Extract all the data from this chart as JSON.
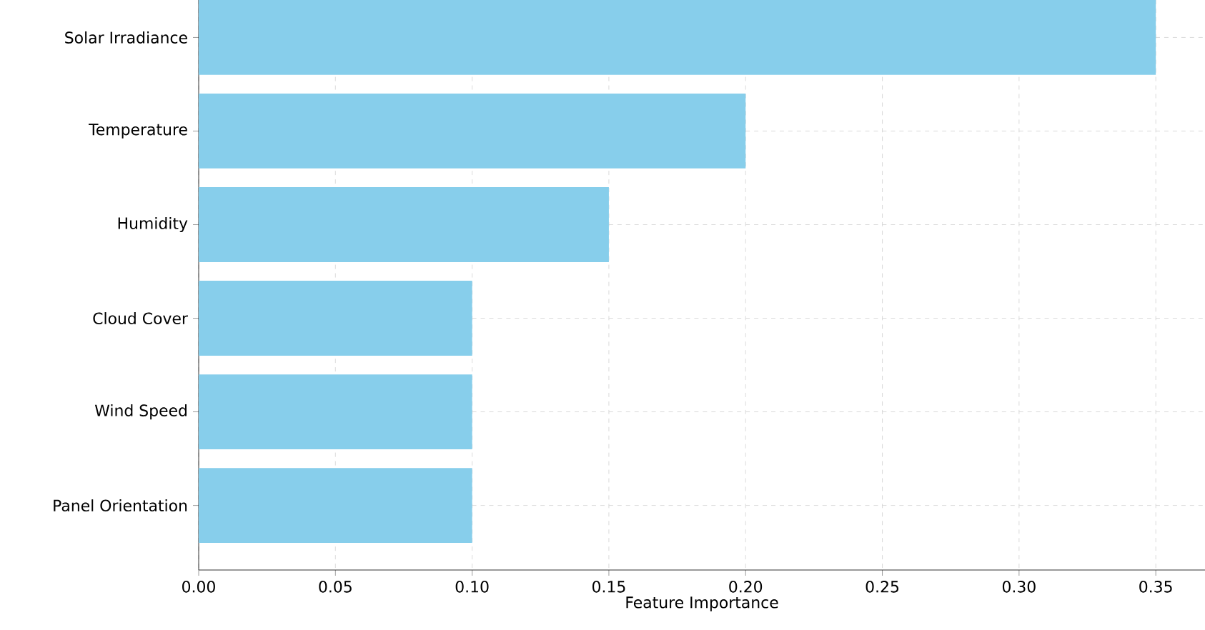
{
  "chart_data": {
    "type": "bar",
    "orientation": "horizontal",
    "xlabel": "Feature Importance",
    "categories": [
      "Solar Irradiance",
      "Temperature",
      "Humidity",
      "Cloud Cover",
      "Wind Speed",
      "Panel Orientation"
    ],
    "values": [
      0.35,
      0.2,
      0.15,
      0.1,
      0.1,
      0.1
    ],
    "color": "#87ceeb",
    "xlim": [
      0,
      0.368
    ],
    "xticks": [
      {
        "value": 0,
        "label": "0.00"
      },
      {
        "value": 0.05,
        "label": "0.05"
      },
      {
        "value": 0.1,
        "label": "0.10"
      },
      {
        "value": 0.15,
        "label": "0.15"
      },
      {
        "value": 0.2,
        "label": "0.20"
      },
      {
        "value": 0.25,
        "label": "0.25"
      },
      {
        "value": 0.3,
        "label": "0.30"
      },
      {
        "value": 0.35,
        "label": "0.35"
      }
    ],
    "grid": true
  }
}
